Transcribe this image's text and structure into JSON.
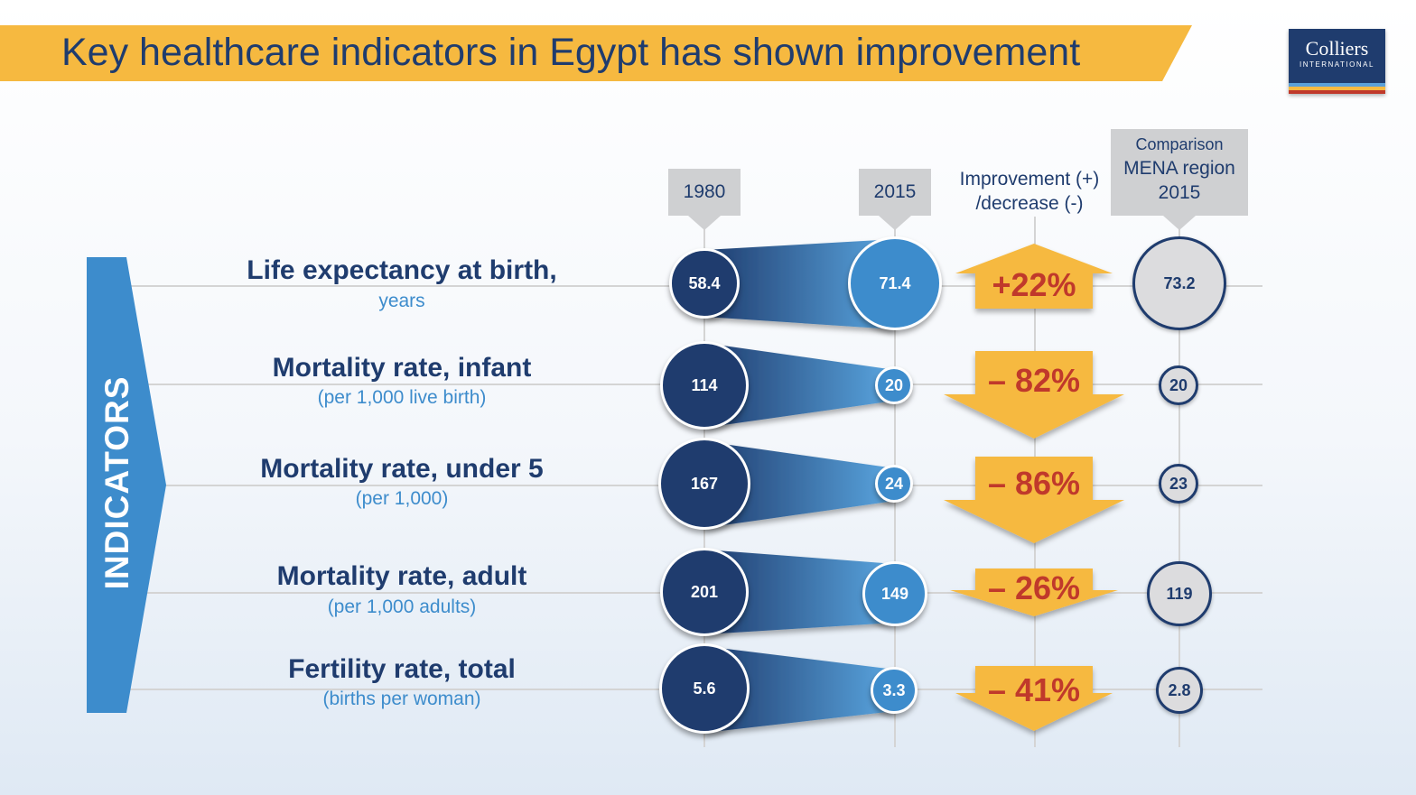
{
  "title": "Key healthcare indicators in Egypt has shown improvement",
  "logo": {
    "brand": "Colliers",
    "sub": "INTERNATIONAL"
  },
  "side_label": "INDICATORS",
  "headers": {
    "col1980": "1980",
    "col2015": "2015",
    "change": [
      "Improvement (+)",
      "/decrease (-)"
    ],
    "mena": [
      "Comparison",
      "MENA region",
      "2015"
    ]
  },
  "rows": [
    {
      "name": "Life expectancy at birth,",
      "unit": "years",
      "v1980": "58.4",
      "v2015": "71.4",
      "change": "+22%",
      "mena": "73.2",
      "direction": "up"
    },
    {
      "name": "Mortality rate, infant",
      "unit": "(per 1,000 live birth)",
      "v1980": "114",
      "v2015": "20",
      "change": "– 82%",
      "mena": "20",
      "direction": "down"
    },
    {
      "name": "Mortality rate, under 5",
      "unit": "(per 1,000)",
      "v1980": "167",
      "v2015": "24",
      "change": "– 86%",
      "mena": "23",
      "direction": "down"
    },
    {
      "name": "Mortality rate, adult",
      "unit": "(per 1,000 adults)",
      "v1980": "201",
      "v2015": "149",
      "change": "– 26%",
      "mena": "119",
      "direction": "down"
    },
    {
      "name": "Fertility rate, total",
      "unit": "(births per woman)",
      "v1980": "5.6",
      "v2015": "3.3",
      "change": "– 41%",
      "mena": "2.8",
      "direction": "down"
    }
  ],
  "colors": {
    "navy": "#1f3c6e",
    "blue": "#3d8ccc",
    "orange": "#f6b940",
    "red": "#c0392b",
    "gray": "#cfd0d2"
  }
}
